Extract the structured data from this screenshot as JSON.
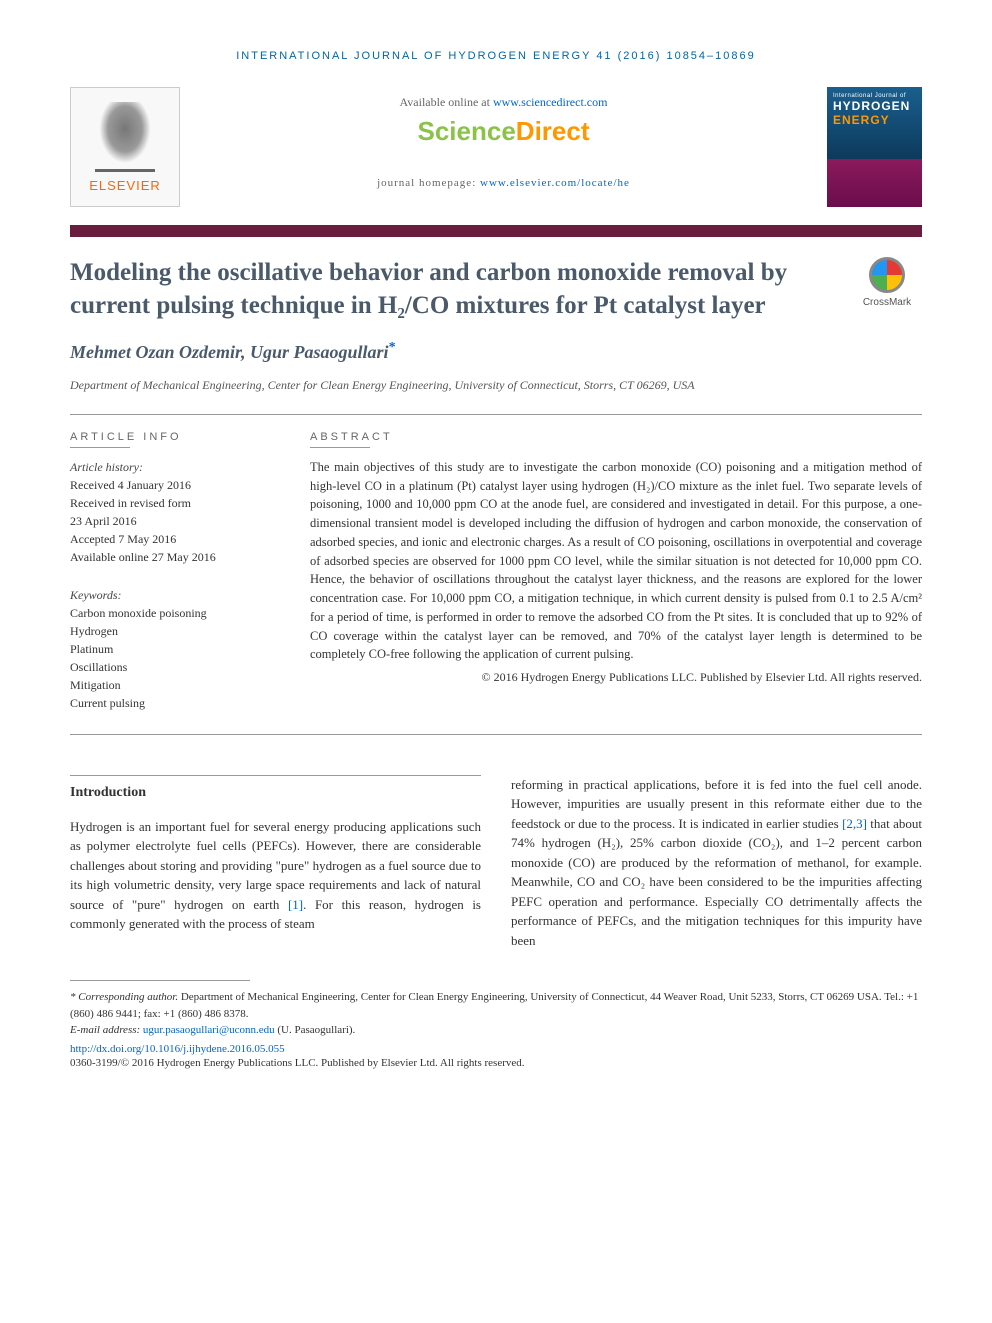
{
  "running_header": "INTERNATIONAL JOURNAL OF HYDROGEN ENERGY 41 (2016) 10854–10869",
  "banner": {
    "elsevier": "ELSEVIER",
    "available_prefix": "Available online at ",
    "available_url": "www.sciencedirect.com",
    "sd_science": "Science",
    "sd_direct": "Direct",
    "homepage_prefix": "journal homepage: ",
    "homepage_url": "www.elsevier.com/locate/he",
    "cover_line1": "International Journal of",
    "cover_line2": "HYDROGEN",
    "cover_line3": "ENERGY"
  },
  "article": {
    "title": "Modeling the oscillative behavior and carbon monoxide removal by current pulsing technique in H₂/CO mixtures for Pt catalyst layer",
    "crossmark": "CrossMark",
    "authors": "Mehmet Ozan Ozdemir, Ugur Pasaogullari",
    "corr_mark": "*",
    "affiliation": "Department of Mechanical Engineering, Center for Clean Energy Engineering, University of Connecticut, Storrs, CT 06269, USA"
  },
  "info": {
    "heading": "ARTICLE INFO",
    "history_label": "Article history:",
    "history": [
      "Received 4 January 2016",
      "Received in revised form",
      "23 April 2016",
      "Accepted 7 May 2016",
      "Available online 27 May 2016"
    ],
    "keywords_label": "Keywords:",
    "keywords": [
      "Carbon monoxide poisoning",
      "Hydrogen",
      "Platinum",
      "Oscillations",
      "Mitigation",
      "Current pulsing"
    ]
  },
  "abstract": {
    "heading": "ABSTRACT",
    "text": "The main objectives of this study are to investigate the carbon monoxide (CO) poisoning and a mitigation method of high-level CO in a platinum (Pt) catalyst layer using hydrogen (H₂)/CO mixture as the inlet fuel. Two separate levels of poisoning, 1000 and 10,000 ppm CO at the anode fuel, are considered and investigated in detail. For this purpose, a one-dimensional transient model is developed including the diffusion of hydrogen and carbon monoxide, the conservation of adsorbed species, and ionic and electronic charges. As a result of CO poisoning, oscillations in overpotential and coverage of adsorbed species are observed for 1000 ppm CO level, while the similar situation is not detected for 10,000 ppm CO. Hence, the behavior of oscillations throughout the catalyst layer thickness, and the reasons are explored for the lower concentration case. For 10,000 ppm CO, a mitigation technique, in which current density is pulsed from 0.1 to 2.5 A/cm² for a period of time, is performed in order to remove the adsorbed CO from the Pt sites. It is concluded that up to 92% of CO coverage within the catalyst layer can be removed, and 70% of the catalyst layer length is determined to be completely CO-free following the application of current pulsing.",
    "copyright": "© 2016 Hydrogen Energy Publications LLC. Published by Elsevier Ltd. All rights reserved."
  },
  "body": {
    "intro_heading": "Introduction",
    "col1": "Hydrogen is an important fuel for several energy producing applications such as polymer electrolyte fuel cells (PEFCs). However, there are considerable challenges about storing and providing \"pure\" hydrogen as a fuel source due to its high volumetric density, very large space requirements and lack of natural source of \"pure\" hydrogen on earth ",
    "ref1": "[1]",
    "col1b": ". For this reason, hydrogen is commonly generated with the process of steam",
    "col2a": "reforming in practical applications, before it is fed into the fuel cell anode. However, impurities are usually present in this reformate either due to the feedstock or due to the process. It is indicated in earlier studies ",
    "ref23": "[2,3]",
    "col2b": " that about 74% hydrogen (H₂), 25% carbon dioxide (CO₂), and 1–2 percent carbon monoxide (CO) are produced by the reformation of methanol, for example. Meanwhile, CO and CO₂ have been considered to be the impurities affecting PEFC operation and performance. Especially CO detrimentally affects the performance of PEFCs, and the mitigation techniques for this impurity have been"
  },
  "footnote": {
    "corr_label": "* Corresponding author.",
    "corr_text": " Department of Mechanical Engineering, Center for Clean Energy Engineering, University of Connecticut, 44 Weaver Road, Unit 5233, Storrs, CT 06269 USA. Tel.: +1 (860) 486 9441; fax: +1 (860) 486 8378.",
    "email_label": "E-mail address: ",
    "email": "ugur.pasaogullari@uconn.edu",
    "email_suffix": " (U. Pasaogullari).",
    "doi": "http://dx.doi.org/10.1016/j.ijhydene.2016.05.055",
    "issn_copyright": "0360-3199/© 2016 Hydrogen Energy Publications LLC. Published by Elsevier Ltd. All rights reserved."
  },
  "colors": {
    "header_blue": "#0066a1",
    "link_blue": "#0066cc",
    "elsevier_orange": "#ff6600",
    "sd_green": "#8bc34a",
    "sd_orange": "#ff9800",
    "divider_maroon": "#6b1d3f",
    "title_gray": "#4a5a6a"
  }
}
